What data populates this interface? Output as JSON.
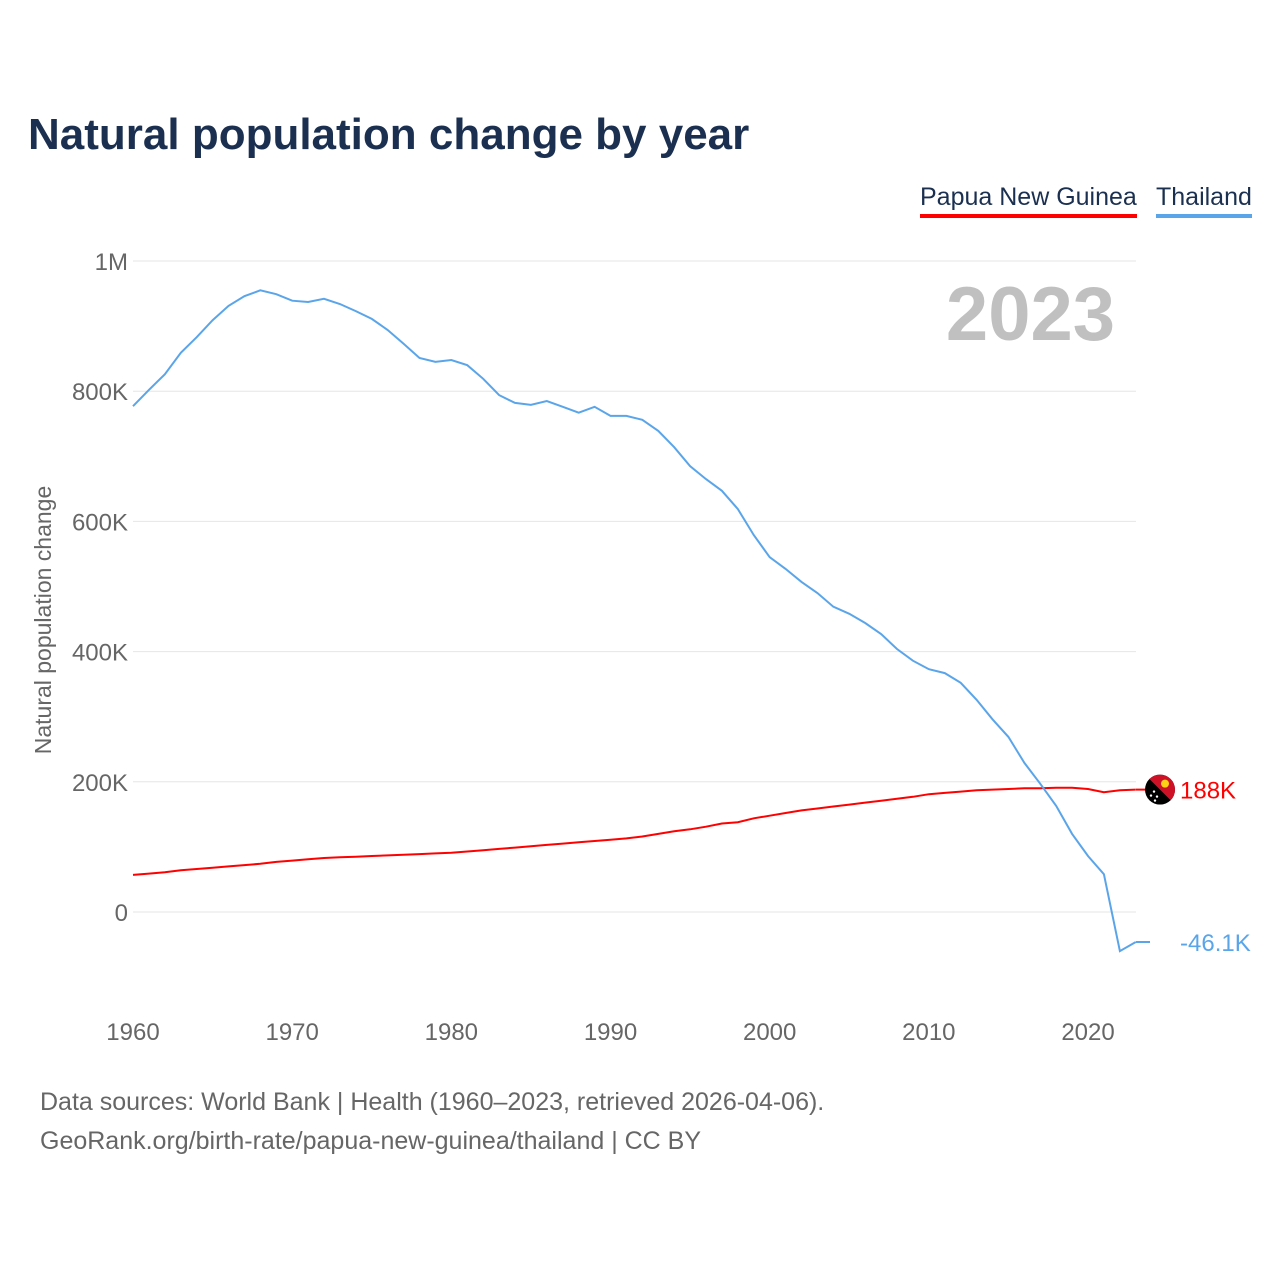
{
  "chart_data": {
    "type": "line",
    "title": "Natural population change by year",
    "ylabel": "Natural population change",
    "xlabel": "",
    "year_label": "2023",
    "ylim": [
      -100000,
      1000000
    ],
    "xlim": [
      1960,
      2023
    ],
    "yticks": [
      0,
      200000,
      400000,
      600000,
      800000,
      1000000
    ],
    "ytick_labels": [
      "0",
      "200K",
      "400K",
      "600K",
      "800K",
      "1M"
    ],
    "xticks": [
      1960,
      1970,
      1980,
      1990,
      2000,
      2010,
      2020
    ],
    "xtick_labels": [
      "1960",
      "1970",
      "1980",
      "1990",
      "2000",
      "2010",
      "2020"
    ],
    "grid": true,
    "legend_position": "top-right",
    "x": [
      1960,
      1961,
      1962,
      1963,
      1964,
      1965,
      1966,
      1967,
      1968,
      1969,
      1970,
      1971,
      1972,
      1973,
      1974,
      1975,
      1976,
      1977,
      1978,
      1979,
      1980,
      1981,
      1982,
      1983,
      1984,
      1985,
      1986,
      1987,
      1988,
      1989,
      1990,
      1991,
      1992,
      1993,
      1994,
      1995,
      1996,
      1997,
      1998,
      1999,
      2000,
      2001,
      2002,
      2003,
      2004,
      2005,
      2006,
      2007,
      2008,
      2009,
      2010,
      2011,
      2012,
      2013,
      2014,
      2015,
      2016,
      2017,
      2018,
      2019,
      2020,
      2021,
      2022,
      2023
    ],
    "series": [
      {
        "name": "Papua New Guinea",
        "color": "#ff0000",
        "end_label": "188K",
        "values": [
          57000,
          59000,
          61000,
          64000,
          66000,
          68000,
          70000,
          72000,
          74000,
          77000,
          79000,
          81000,
          83000,
          84000,
          85000,
          86000,
          87000,
          88000,
          89000,
          90000,
          91000,
          93000,
          95000,
          97000,
          99000,
          101000,
          103000,
          105000,
          107000,
          109000,
          111000,
          113000,
          116000,
          120000,
          124000,
          127000,
          131000,
          136000,
          138000,
          144000,
          148000,
          152000,
          156000,
          159000,
          162000,
          165000,
          168000,
          171000,
          174000,
          177000,
          181000,
          183000,
          185000,
          187000,
          188000,
          189000,
          190000,
          190000,
          191000,
          191000,
          189000,
          184000,
          187000,
          188000
        ]
      },
      {
        "name": "Thailand",
        "color": "#5aa5ea",
        "end_label": "-46.1K",
        "values": [
          777000,
          802000,
          826000,
          859000,
          883000,
          909000,
          931000,
          946000,
          955000,
          949000,
          939000,
          937000,
          942000,
          934000,
          923000,
          911000,
          894000,
          873000,
          851000,
          845000,
          848000,
          840000,
          819000,
          794000,
          782000,
          779000,
          785000,
          776000,
          767000,
          776000,
          762000,
          762000,
          756000,
          739000,
          714000,
          685000,
          665000,
          647000,
          619000,
          579000,
          545000,
          527000,
          507000,
          490000,
          469000,
          458000,
          444000,
          427000,
          404000,
          386000,
          373000,
          367000,
          352000,
          326000,
          296000,
          269000,
          229000,
          197000,
          163000,
          120000,
          86000,
          58000,
          -60000,
          -46100
        ]
      }
    ]
  },
  "footer": {
    "line1": "Data sources: World Bank | Health (1960–2023, retrieved 2026-04-06).",
    "line2": "GeoRank.org/birth-rate/papua-new-guinea/thailand | CC BY"
  }
}
